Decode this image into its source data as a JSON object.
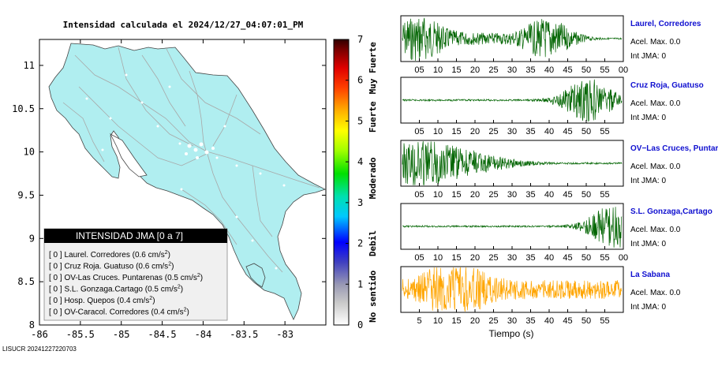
{
  "map": {
    "title": "Intensidad calculada el 2024/12/27_04:07:01_PM",
    "x_ticks": [
      "-86",
      "-85.5",
      "-85",
      "-84.5",
      "-84",
      "-83.5",
      "-83"
    ],
    "y_ticks": [
      "8",
      "8.5",
      "9",
      "9.5",
      "10",
      "10.5",
      "11"
    ]
  },
  "colorbar": {
    "ticks": [
      "0",
      "1",
      "2",
      "3",
      "4",
      "5",
      "6",
      "7"
    ],
    "labels": [
      "No sentido",
      "Debil",
      "Moderado",
      "Fuerte",
      "Muy Fuerte"
    ]
  },
  "legend": {
    "title": "INTENSIDAD JMA [0 a 7]",
    "items": [
      {
        "level": "[ 0 ]",
        "name": "Laurel. Corredores",
        "value": "(0.6 cm/s",
        "sup": "2",
        "close": ")"
      },
      {
        "level": "[ 0 ]",
        "name": "Cruz Roja. Guatuso",
        "value": "(0.6 cm/s",
        "sup": "2",
        "close": ")"
      },
      {
        "level": "[ 0 ]",
        "name": "OV-Las Cruces. Puntarenas",
        "value": "(0.5 cm/s",
        "sup": "2",
        "close": ")"
      },
      {
        "level": "[ 0 ]",
        "name": "S.L. Gonzaga.Cartago",
        "value": "(0.5 cm/s",
        "sup": "2",
        "close": ")"
      },
      {
        "level": "[ 0 ]",
        "name": "Hosp. Quepos",
        "value": "(0.4 cm/s",
        "sup": "2",
        "close": ")"
      },
      {
        "level": "[ 0 ]",
        "name": "OV-Caracol. Corredores",
        "value": "(0.4 cm/s",
        "sup": "2",
        "close": ")"
      }
    ]
  },
  "traces": [
    {
      "title": "Laurel, Corredores",
      "acel": "Acel. Max. 0.0",
      "int": "Int JMA: 0",
      "color": "#006400",
      "ticks": [
        "05",
        "10",
        "15",
        "20",
        "25",
        "30",
        "35",
        "40",
        "45",
        "50",
        "55",
        "00"
      ]
    },
    {
      "title": "Cruz Roja, Guatuso",
      "acel": "Acel. Max. 0.0",
      "int": "Int JMA: 0",
      "color": "#006400",
      "ticks": [
        "05",
        "10",
        "15",
        "20",
        "25",
        "30",
        "35",
        "40",
        "45",
        "50",
        "55"
      ]
    },
    {
      "title": "OV−Las Cruces, Puntar",
      "acel": "Acel. Max. 0.0",
      "int": "Int JMA: 0",
      "color": "#006400",
      "ticks": [
        "05",
        "10",
        "15",
        "20",
        "25",
        "30",
        "35",
        "40",
        "45",
        "50",
        "55"
      ]
    },
    {
      "title": "S.L. Gonzaga,Cartago",
      "acel": "Acel. Max. 0.0",
      "int": "Int JMA: 0",
      "color": "#006400",
      "ticks": [
        "05",
        "10",
        "15",
        "20",
        "25",
        "30",
        "35",
        "40",
        "45",
        "50",
        "55",
        "00"
      ]
    },
    {
      "title": "La Sabana",
      "acel": "Acel. Max. 0.0",
      "int": "Int JMA: 0",
      "color": "#ffa500",
      "ticks": [
        "5",
        "10",
        "15",
        "20",
        "25",
        "30",
        "35",
        "40",
        "45",
        "50",
        "55"
      ]
    }
  ],
  "xlabel": "Tiempo (s)",
  "footer": "LISUCR 20241227220703",
  "chart_data": [
    {
      "type": "scatter",
      "title": "Intensidad calculada el 2024/12/27_04:07:01_PM",
      "xlim": [
        -86,
        -82.5
      ],
      "ylim": [
        8,
        11.3
      ],
      "x_ticks": [
        -86,
        -85.5,
        -85,
        -84.5,
        -84,
        -83.5,
        -83
      ],
      "y_ticks": [
        8,
        8.5,
        9,
        9.5,
        10,
        10.5,
        11
      ],
      "colorbar_range": [
        0,
        7
      ],
      "legend_placement": "bottom-left",
      "series": [
        {
          "name": "Laurel. Corredores",
          "intensity": 0,
          "accel_cm_s2": 0.6
        },
        {
          "name": "Cruz Roja. Guatuso",
          "intensity": 0,
          "accel_cm_s2": 0.6
        },
        {
          "name": "OV-Las Cruces. Puntarenas",
          "intensity": 0,
          "accel_cm_s2": 0.5
        },
        {
          "name": "S.L. Gonzaga.Cartago",
          "intensity": 0,
          "accel_cm_s2": 0.5
        },
        {
          "name": "Hosp. Quepos",
          "intensity": 0,
          "accel_cm_s2": 0.4
        },
        {
          "name": "OV-Caracol. Corredores",
          "intensity": 0,
          "accel_cm_s2": 0.4
        }
      ]
    },
    {
      "type": "line",
      "xlabel": "Tiempo (s)",
      "xlim": [
        1,
        60
      ],
      "series": [
        {
          "name": "Laurel, Corredores",
          "peak_accel": 0.0,
          "intensity": 0,
          "bursts": [
            [
              5,
              1.0
            ],
            [
              40,
              0.9
            ]
          ]
        },
        {
          "name": "Cruz Roja, Guatuso",
          "peak_accel": 0.0,
          "intensity": 0,
          "bursts": [
            [
              51,
              1.0
            ]
          ]
        },
        {
          "name": "OV−Las Cruces, Puntar",
          "peak_accel": 0.0,
          "intensity": 0,
          "bursts": [
            [
              4,
              1.0
            ]
          ]
        },
        {
          "name": "S.L. Gonzaga,Cartago",
          "peak_accel": 0.0,
          "intensity": 0,
          "bursts": [
            [
              58,
              1.0
            ]
          ]
        },
        {
          "name": "La Sabana",
          "peak_accel": 0.0,
          "intensity": 0,
          "bursts": [
            [
              15,
              1.0
            ]
          ]
        }
      ]
    }
  ]
}
